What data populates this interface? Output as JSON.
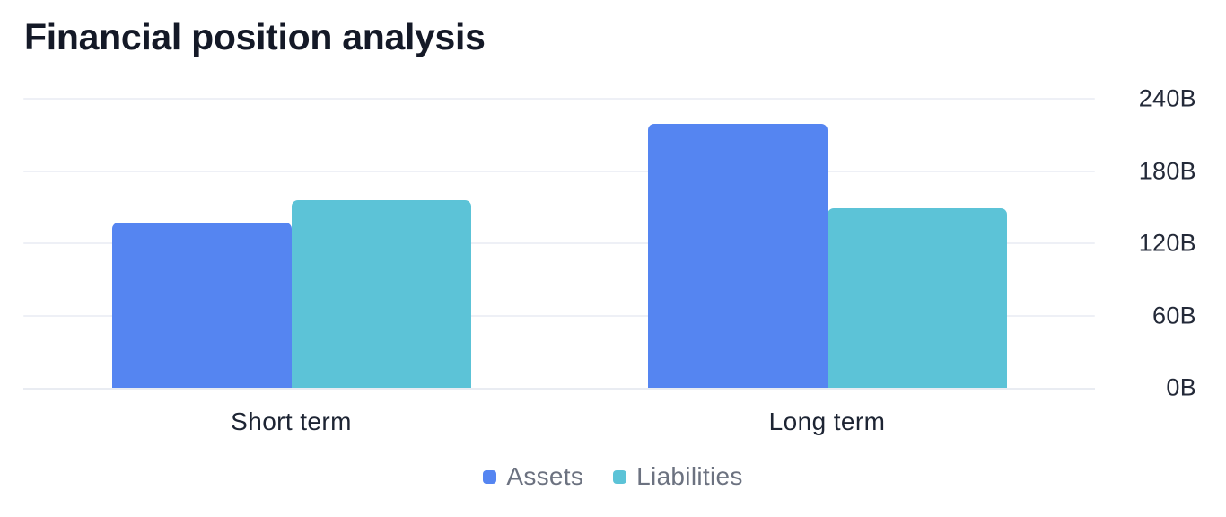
{
  "chart_data": {
    "type": "bar",
    "title": "Financial position analysis",
    "categories": [
      "Short term",
      "Long term"
    ],
    "series": [
      {
        "name": "Assets",
        "color": "#5585f1",
        "values": [
          137,
          219
        ]
      },
      {
        "name": "Liabilities",
        "color": "#5cc3d7",
        "values": [
          156,
          149
        ]
      }
    ],
    "xlabel": "",
    "ylabel": "",
    "ylim": [
      0,
      240
    ],
    "ytick_values": [
      0,
      60,
      120,
      180,
      240
    ],
    "ytick_labels": [
      "0B",
      "60B",
      "120B",
      "180B",
      "240B"
    ],
    "yaxis_side": "right",
    "legend_position": "bottom",
    "grid": true,
    "colors": {
      "assets": "#5585f1",
      "liabilities": "#5cc3d7",
      "gridline": "#eef0f6",
      "axis_line": "#e9ecf2",
      "ytick_text": "#232938",
      "xtick_text": "#1d2433",
      "legend_text": "#6c7280",
      "title_text": "#141927",
      "background": "#ffffff"
    }
  }
}
